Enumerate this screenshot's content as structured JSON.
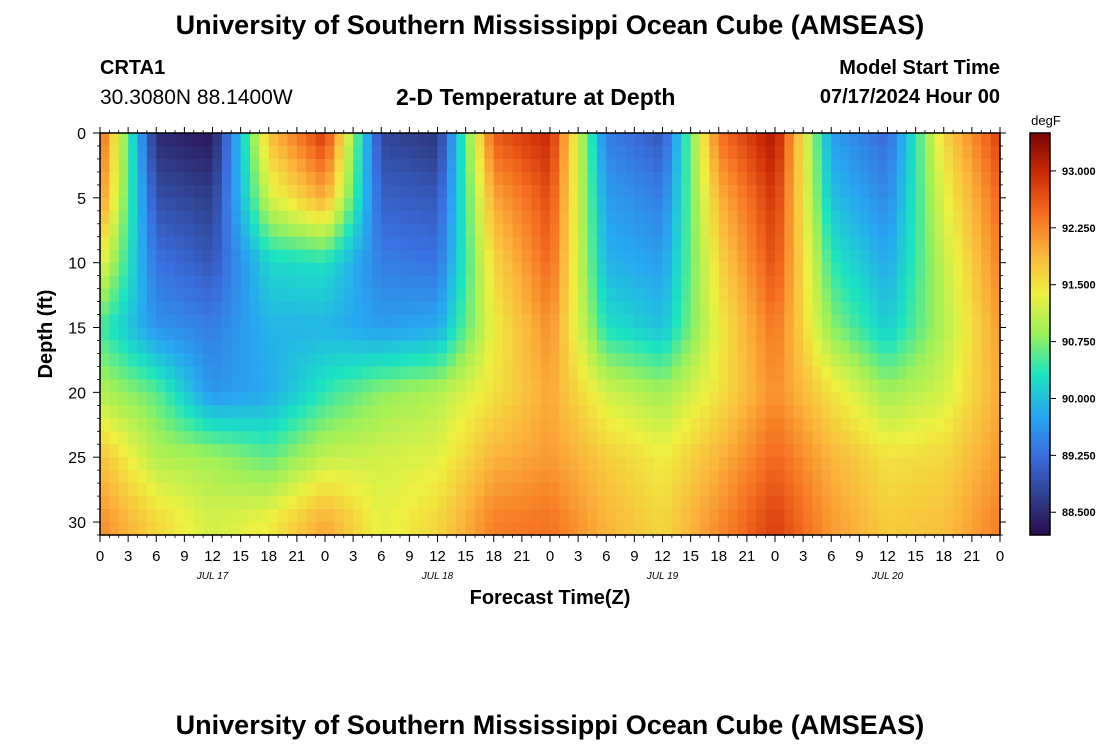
{
  "header": {
    "title": "University of Southern Mississippi Ocean Cube (AMSEAS)",
    "station_id": "CRTA1",
    "coordinates": "30.3080N  88.1400W",
    "plot_title": "2-D Temperature at Depth",
    "model_start_label": "Model Start Time",
    "model_start_value": "07/17/2024 Hour 00"
  },
  "footer": {
    "title": "University of Southern Mississippi Ocean Cube (AMSEAS)"
  },
  "chart_data": {
    "type": "heatmap",
    "title": "2-D Temperature at Depth",
    "xlabel": "Forecast Time(Z)",
    "ylabel": "Depth (ft)",
    "x_tick_labels": [
      "0",
      "3",
      "6",
      "9",
      "12",
      "15",
      "18",
      "21",
      "0",
      "3",
      "6",
      "9",
      "12",
      "15",
      "18",
      "21",
      "0",
      "3",
      "6",
      "9",
      "12",
      "15",
      "18",
      "21",
      "0",
      "3",
      "6",
      "9",
      "12",
      "15",
      "18",
      "21",
      "0"
    ],
    "x_date_labels": [
      {
        "label": "JUL 17",
        "hour": 12
      },
      {
        "label": "JUL 18",
        "hour": 36
      },
      {
        "label": "JUL 19",
        "hour": 60
      },
      {
        "label": "JUL 20",
        "hour": 84
      }
    ],
    "xlim_hours": [
      0,
      96
    ],
    "ylim_ft": [
      0,
      31
    ],
    "y_ticks": [
      "0",
      "5",
      "10",
      "15",
      "20",
      "25",
      "30"
    ],
    "y_inverted": true,
    "colorbar": {
      "unit": "degF",
      "vmin": 88.2,
      "vmax": 93.5,
      "tick_labels": [
        "93.000",
        "92.250",
        "91.500",
        "90.750",
        "90.000",
        "89.250",
        "88.500"
      ],
      "colors": [
        "#2a0c4e",
        "#30418f",
        "#3a6fe0",
        "#27a8f0",
        "#1be4c0",
        "#9af05a",
        "#eef040",
        "#fbb43b",
        "#f56d20",
        "#cc2a06",
        "#7a0403"
      ]
    },
    "series_description": "Diurnal pattern: cool upper-layer water (~88.5-89.5 degF) during hours 3-17 of each day, warm water (~92-93 degF) around hours 19-24; deeper water (20-31 ft) mostly 90.5-92.5 degF.",
    "warm_maxima_hours": [
      1,
      22,
      46,
      70,
      94
    ],
    "cool_minima_hours": [
      11,
      36,
      59,
      83
    ],
    "depth_grid_ft": [
      0,
      5,
      10,
      15,
      20,
      25,
      30
    ],
    "hour_grid": [
      0,
      6,
      12,
      18,
      24,
      30,
      36,
      42,
      48,
      54,
      60,
      66,
      72,
      78,
      84,
      90,
      96
    ],
    "temperature_grid_degF": [
      [
        92.6,
        88.5,
        88.3,
        91.8,
        92.9,
        88.8,
        88.6,
        92.6,
        93.0,
        89.4,
        89.0,
        92.4,
        93.2,
        89.7,
        89.2,
        91.6,
        92.8
      ],
      [
        92.2,
        88.9,
        88.7,
        91.2,
        92.0,
        89.1,
        89.0,
        92.0,
        92.7,
        89.7,
        89.4,
        91.9,
        92.9,
        90.0,
        89.5,
        91.3,
        92.5
      ],
      [
        91.4,
        89.3,
        89.0,
        90.2,
        90.3,
        89.4,
        89.3,
        91.6,
        92.5,
        89.9,
        89.7,
        91.6,
        92.7,
        90.4,
        89.8,
        91.1,
        92.3
      ],
      [
        90.5,
        89.6,
        89.4,
        89.9,
        89.9,
        89.7,
        89.8,
        91.4,
        92.2,
        90.3,
        90.0,
        91.4,
        92.4,
        90.8,
        90.1,
        91.0,
        92.1
      ],
      [
        91.0,
        90.6,
        89.6,
        89.8,
        90.4,
        90.8,
        91.0,
        91.5,
        92.0,
        91.2,
        90.9,
        91.5,
        92.2,
        91.5,
        90.9,
        91.2,
        92.0
      ],
      [
        91.8,
        91.0,
        90.9,
        90.6,
        91.1,
        91.2,
        91.3,
        91.9,
        92.1,
        91.7,
        91.4,
        91.9,
        92.5,
        91.9,
        91.5,
        91.6,
        92.1
      ],
      [
        92.2,
        91.6,
        91.2,
        91.4,
        92.0,
        91.3,
        91.6,
        92.3,
        92.4,
        91.9,
        91.6,
        92.2,
        92.8,
        92.1,
        91.7,
        91.8,
        92.3
      ]
    ]
  }
}
